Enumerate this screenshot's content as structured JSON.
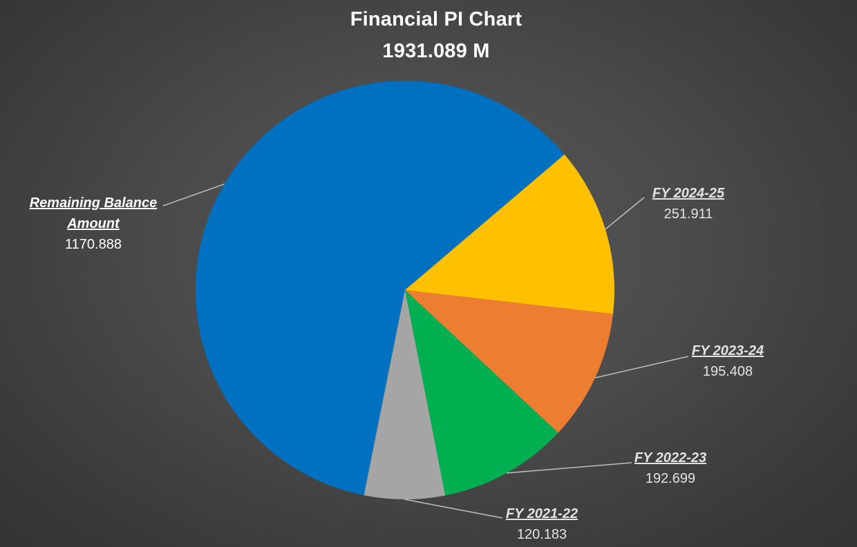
{
  "chart_data": {
    "type": "pie",
    "title": "Financial PI Chart",
    "subtitle": "1931.089 M",
    "total": 1931.089,
    "slices": [
      {
        "name": "Remaining Balance Amount",
        "label_lines": [
          "Remaining Balance",
          "Amount"
        ],
        "value": 1170.888,
        "value_label": "1170.888",
        "color": "#0070C0"
      },
      {
        "name": "FY 2024-25",
        "label_lines": [
          "FY 2024-25"
        ],
        "value": 251.911,
        "value_label": "251.911",
        "color": "#FFC000"
      },
      {
        "name": "FY 2023-24",
        "label_lines": [
          "FY 2023-24"
        ],
        "value": 195.408,
        "value_label": "195.408",
        "color": "#ED7D31"
      },
      {
        "name": "FY 2022-23",
        "label_lines": [
          "FY 2022-23"
        ],
        "value": 192.699,
        "value_label": "192.699",
        "color": "#00B050"
      },
      {
        "name": "FY 2021-22",
        "label_lines": [
          "FY 2021-22"
        ],
        "value": 120.183,
        "value_label": "120.183",
        "color": "#A5A5A5"
      }
    ],
    "leader_line_color": "#bfbfbf",
    "background_color": "#474747"
  }
}
